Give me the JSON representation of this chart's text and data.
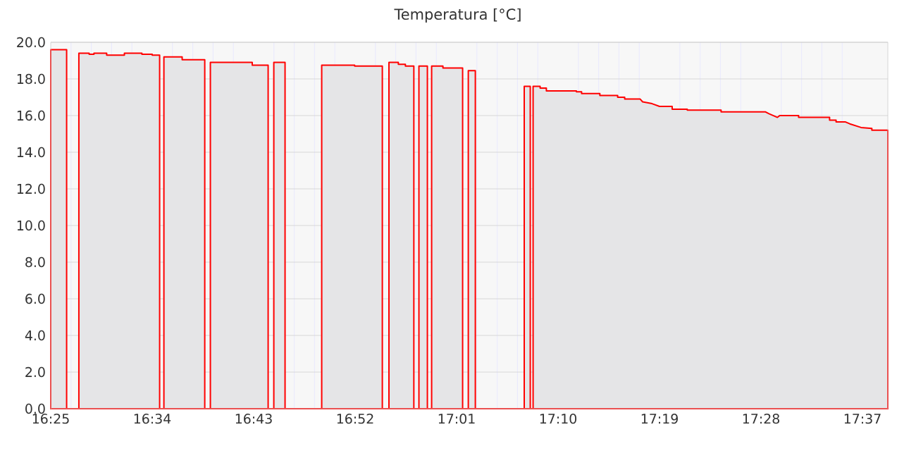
{
  "chart_data": {
    "type": "area",
    "title": "Temperatura [°C]",
    "x": [
      16.4167,
      16.4402,
      16.4402,
      16.4583,
      16.4583,
      16.4735,
      16.4735,
      16.4806,
      16.4806,
      16.4994,
      16.4994,
      16.5256,
      16.5256,
      16.5515,
      16.5515,
      16.5667,
      16.5667,
      16.5777,
      16.5777,
      16.584,
      16.584,
      16.611,
      16.611,
      16.6444,
      16.6444,
      16.6527,
      16.6527,
      16.7146,
      16.7146,
      16.7381,
      16.7381,
      16.7465,
      16.7465,
      16.7631,
      16.7631,
      16.8173,
      16.8173,
      16.866,
      16.866,
      16.9069,
      16.9069,
      16.9167,
      16.9167,
      16.9306,
      16.9306,
      16.941,
      16.941,
      16.9535,
      16.9535,
      16.961,
      16.961,
      16.9735,
      16.9735,
      16.9798,
      16.9798,
      16.9965,
      16.9965,
      17.0256,
      17.0256,
      17.034,
      17.034,
      17.0444,
      17.0444,
      17.1167,
      17.1167,
      17.1256,
      17.1256,
      17.1298,
      17.1298,
      17.1402,
      17.1402,
      17.1494,
      17.1494,
      17.1938,
      17.1938,
      17.2015,
      17.2015,
      17.2285,
      17.2285,
      17.2548,
      17.2548,
      17.2652,
      17.2652,
      17.2881,
      17.2917,
      17.3056,
      17.3167,
      17.3354,
      17.3354,
      17.3577,
      17.3577,
      17.4077,
      17.4077,
      17.4735,
      17.4785,
      17.491,
      17.4944,
      17.5223,
      17.5223,
      17.5681,
      17.5681,
      17.5777,
      17.5777,
      17.5917,
      17.5979,
      17.6146,
      17.6306,
      17.6306,
      17.6542
    ],
    "series": [
      {
        "color": "#ff0000",
        "values": [
          19.6,
          19.6,
          0,
          0,
          19.4,
          19.4,
          19.35,
          19.35,
          19.4,
          19.4,
          19.3,
          19.3,
          19.4,
          19.4,
          19.35,
          19.35,
          19.3,
          19.3,
          0,
          0,
          19.2,
          19.2,
          19.05,
          19.05,
          0,
          0,
          18.9,
          18.9,
          18.75,
          18.75,
          0,
          0,
          18.9,
          18.9,
          0,
          0,
          18.75,
          18.75,
          18.7,
          18.7,
          0,
          0,
          18.9,
          18.9,
          18.8,
          18.8,
          18.7,
          18.7,
          0,
          0,
          18.7,
          18.7,
          0,
          0,
          18.7,
          18.7,
          18.6,
          18.6,
          0,
          0,
          18.45,
          18.45,
          0,
          0,
          17.6,
          17.6,
          0,
          0,
          17.6,
          17.6,
          17.5,
          17.5,
          17.35,
          17.35,
          17.3,
          17.3,
          17.2,
          17.2,
          17.1,
          17.1,
          17.0,
          17.0,
          16.9,
          16.9,
          16.75,
          16.65,
          16.5,
          16.5,
          16.35,
          16.35,
          16.3,
          16.3,
          16.2,
          16.2,
          16.1,
          15.9,
          16.0,
          16.0,
          15.9,
          15.9,
          15.75,
          15.75,
          15.65,
          15.65,
          15.55,
          15.35,
          15.3,
          15.2,
          15.2
        ]
      }
    ],
    "xlim": [
      16.4167,
      17.6542
    ],
    "xticks": [
      {
        "value": 16.4167,
        "label": "16:25"
      },
      {
        "value": 16.5667,
        "label": "16:34"
      },
      {
        "value": 16.7167,
        "label": "16:43"
      },
      {
        "value": 16.8667,
        "label": "16:52"
      },
      {
        "value": 17.0167,
        "label": "17:01"
      },
      {
        "value": 17.1667,
        "label": "17:10"
      },
      {
        "value": 17.3167,
        "label": "17:19"
      },
      {
        "value": 17.4667,
        "label": "17:28"
      },
      {
        "value": 17.6167,
        "label": "17:37"
      }
    ],
    "ylim": [
      0,
      20
    ],
    "yticks": [
      {
        "value": 0,
        "label": "0.0"
      },
      {
        "value": 2,
        "label": "2.0"
      },
      {
        "value": 4,
        "label": "4.0"
      },
      {
        "value": 6,
        "label": "6.0"
      },
      {
        "value": 8,
        "label": "8.0"
      },
      {
        "value": 10,
        "label": "10.0"
      },
      {
        "value": 12,
        "label": "12.0"
      },
      {
        "value": 14,
        "label": "14.0"
      },
      {
        "value": 16,
        "label": "16.0"
      },
      {
        "value": 18,
        "label": "18.0"
      },
      {
        "value": 20,
        "label": "20.0"
      }
    ],
    "grid": true
  }
}
